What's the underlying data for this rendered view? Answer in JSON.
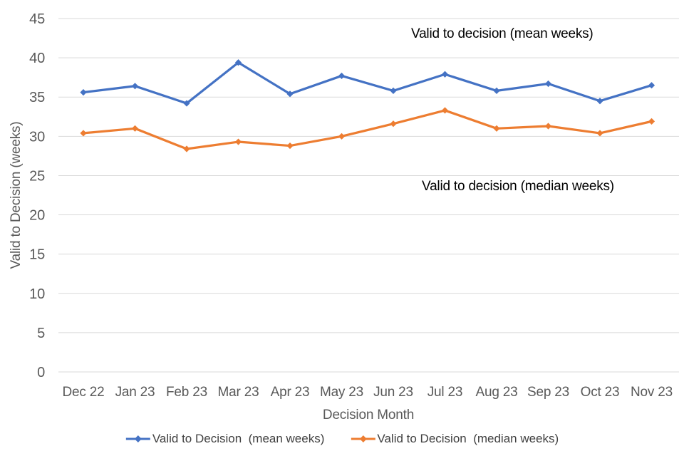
{
  "chart_data": {
    "type": "line",
    "title": "",
    "xlabel": "Decision Month",
    "ylabel": "Valid to Decision (weeks)",
    "ylim": [
      0,
      45
    ],
    "ytick_step": 5,
    "grid": true,
    "legend_position": "bottom",
    "categories": [
      "Dec 22",
      "Jan 23",
      "Feb 23",
      "Mar 23",
      "Apr 23",
      "May 23",
      "Jun 23",
      "Jul 23",
      "Aug 23",
      "Sep 23",
      "Oct 23",
      "Nov 23"
    ],
    "series": [
      {
        "name": "Valid to Decision  (mean weeks)",
        "color": "#4472C4",
        "values": [
          35.6,
          36.4,
          34.2,
          39.4,
          35.4,
          37.7,
          35.8,
          37.9,
          35.8,
          36.7,
          34.5,
          36.5
        ]
      },
      {
        "name": "Valid to Decision  (median weeks)",
        "color": "#ED7D31",
        "values": [
          30.4,
          31.0,
          28.4,
          29.3,
          28.8,
          30.0,
          31.6,
          33.3,
          31.0,
          31.3,
          30.4,
          31.9
        ]
      }
    ],
    "annotations": [
      {
        "text": "Valid to decision (mean weeks)"
      },
      {
        "text": "Valid to decision (median weeks)"
      }
    ]
  },
  "colors": {
    "mean_series": "#4472C4",
    "median_series": "#ED7D31",
    "gridline": "#D9D9D9",
    "tick_label": "#595959",
    "axis_title": "#595959",
    "annotation": "#000000",
    "legend_text": "#404040",
    "background": "#FFFFFF"
  }
}
